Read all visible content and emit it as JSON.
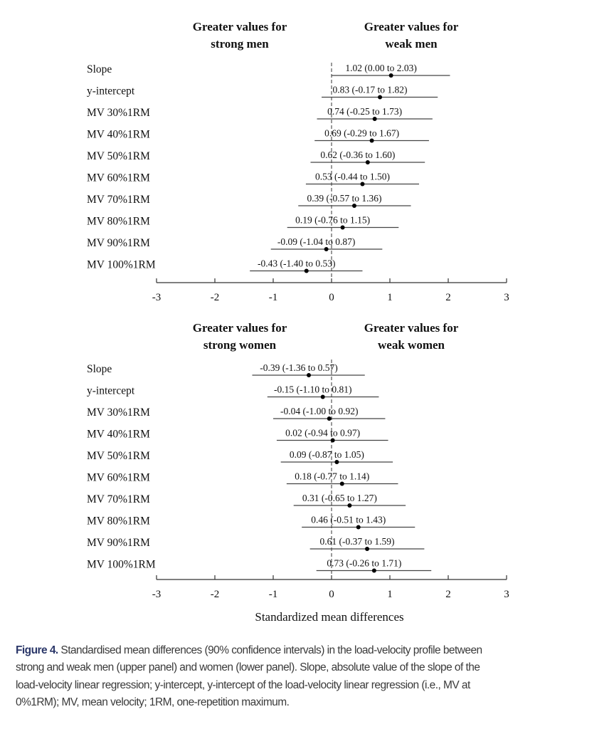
{
  "chart_data": [
    {
      "type": "forest",
      "panel": "upper",
      "header_left": [
        "Greater values for",
        "strong men"
      ],
      "header_right": [
        "Greater values for",
        "weak men"
      ],
      "xlim": [
        -3,
        3
      ],
      "xticks": [
        "-3",
        "-2",
        "-1",
        "0",
        "1",
        "2",
        "3"
      ],
      "xlabel": "",
      "reference_line": 0,
      "rows": [
        {
          "label": "Slope",
          "mean": 1.02,
          "lower": 0.0,
          "upper": 2.03,
          "text": "1.02 (0.00 to 2.03)"
        },
        {
          "label": "y-intercept",
          "mean": 0.83,
          "lower": -0.17,
          "upper": 1.82,
          "text": "0.83 (-0.17 to 1.82)"
        },
        {
          "label": "MV 30%1RM",
          "mean": 0.74,
          "lower": -0.25,
          "upper": 1.73,
          "text": "0.74 (-0.25 to 1.73)"
        },
        {
          "label": "MV 40%1RM",
          "mean": 0.69,
          "lower": -0.29,
          "upper": 1.67,
          "text": "0.69 (-0.29 to 1.67)"
        },
        {
          "label": "MV 50%1RM",
          "mean": 0.62,
          "lower": -0.36,
          "upper": 1.6,
          "text": "0.62 (-0.36 to 1.60)"
        },
        {
          "label": "MV 60%1RM",
          "mean": 0.53,
          "lower": -0.44,
          "upper": 1.5,
          "text": "0.53 (-0.44 to 1.50)"
        },
        {
          "label": "MV 70%1RM",
          "mean": 0.39,
          "lower": -0.57,
          "upper": 1.36,
          "text": "0.39 (-0.57 to 1.36)"
        },
        {
          "label": "MV 80%1RM",
          "mean": 0.19,
          "lower": -0.76,
          "upper": 1.15,
          "text": "0.19 (-0.76 to 1.15)"
        },
        {
          "label": "MV 90%1RM",
          "mean": -0.09,
          "lower": -1.04,
          "upper": 0.87,
          "text": "-0.09 (-1.04 to 0.87)"
        },
        {
          "label": "MV 100%1RM",
          "mean": -0.43,
          "lower": -1.4,
          "upper": 0.53,
          "text": "-0.43 (-1.40 to 0.53)"
        }
      ]
    },
    {
      "type": "forest",
      "panel": "lower",
      "header_left": [
        "Greater values for",
        "strong women"
      ],
      "header_right": [
        "Greater values for",
        "weak women"
      ],
      "xlim": [
        -3,
        3
      ],
      "xticks": [
        "-3",
        "-2",
        "-1",
        "0",
        "1",
        "2",
        "3"
      ],
      "xlabel": "Standardized mean differences",
      "reference_line": 0,
      "rows": [
        {
          "label": "Slope",
          "mean": -0.39,
          "lower": -1.36,
          "upper": 0.57,
          "text": "-0.39 (-1.36 to 0.57)"
        },
        {
          "label": "y-intercept",
          "mean": -0.15,
          "lower": -1.1,
          "upper": 0.81,
          "text": "-0.15 (-1.10 to 0.81)"
        },
        {
          "label": "MV 30%1RM",
          "mean": -0.04,
          "lower": -1.0,
          "upper": 0.92,
          "text": "-0.04 (-1.00 to 0.92)"
        },
        {
          "label": "MV 40%1RM",
          "mean": 0.02,
          "lower": -0.94,
          "upper": 0.97,
          "text": "0.02 (-0.94 to 0.97)"
        },
        {
          "label": "MV 50%1RM",
          "mean": 0.09,
          "lower": -0.87,
          "upper": 1.05,
          "text": "0.09 (-0.87 to 1.05)"
        },
        {
          "label": "MV 60%1RM",
          "mean": 0.18,
          "lower": -0.77,
          "upper": 1.14,
          "text": "0.18 (-0.77 to 1.14)"
        },
        {
          "label": "MV 70%1RM",
          "mean": 0.31,
          "lower": -0.65,
          "upper": 1.27,
          "text": "0.31 (-0.65 to 1.27)"
        },
        {
          "label": "MV 80%1RM",
          "mean": 0.46,
          "lower": -0.51,
          "upper": 1.43,
          "text": "0.46 (-0.51 to 1.43)"
        },
        {
          "label": "MV 90%1RM",
          "mean": 0.61,
          "lower": -0.37,
          "upper": 1.59,
          "text": "0.61 (-0.37 to 1.59)"
        },
        {
          "label": "MV 100%1RM",
          "mean": 0.73,
          "lower": -0.26,
          "upper": 1.71,
          "text": "0.73 (-0.26 to 1.71)"
        }
      ]
    }
  ],
  "caption": {
    "figure_label": "Figure 4.",
    "lines": [
      " Standardised mean differences (90% confidence intervals) in the load-velocity profile between",
      "strong and weak men (upper panel) and women (lower panel). Slope, absolute value of the slope of the",
      "load-velocity linear regression; y-intercept, y-intercept of the load-velocity linear regression (i.e., MV at",
      "0%1RM); MV, mean velocity; 1RM, one-repetition maximum."
    ],
    "label_color": "#2b3769",
    "text_color": "#3a3a3a"
  }
}
